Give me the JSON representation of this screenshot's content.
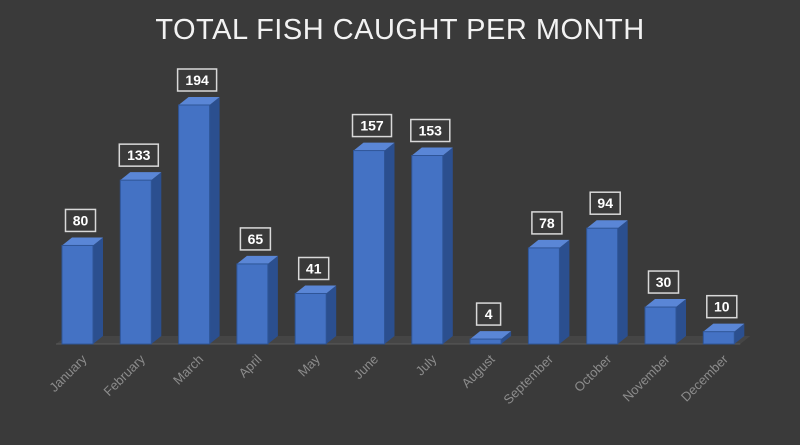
{
  "chart_data": {
    "type": "bar",
    "title": "TOTAL FISH CAUGHT PER MONTH",
    "categories": [
      "January",
      "February",
      "March",
      "April",
      "May",
      "June",
      "July",
      "August",
      "September",
      "October",
      "November",
      "December"
    ],
    "values": [
      80,
      133,
      194,
      65,
      41,
      157,
      153,
      4,
      78,
      94,
      30,
      10
    ],
    "xlabel": "",
    "ylabel": "",
    "ylim": [
      0,
      194
    ],
    "grid": false,
    "legend": "none",
    "data_labels": true,
    "style": "3d-column",
    "colors": {
      "background": "#3a3a3a",
      "bar_front": "#4472c4",
      "bar_side": "#2b4f8f",
      "bar_top": "#5a86d6",
      "label_border": "#d9d9d9",
      "axis_text": "#8c8c8c",
      "title": "#f2f2f2"
    }
  }
}
